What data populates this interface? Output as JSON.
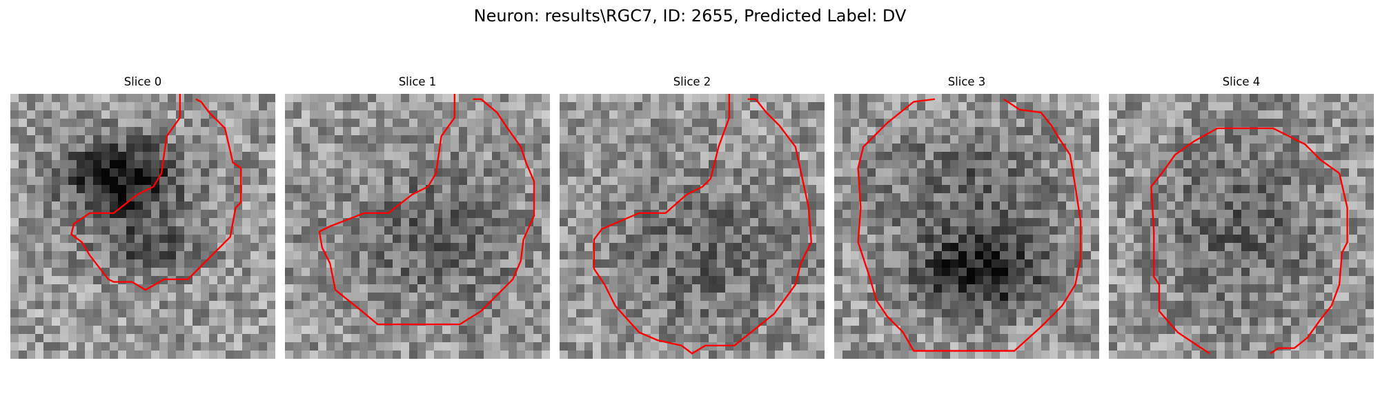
{
  "figure": {
    "title": "Neuron: results\\RGC7, ID: 2655, Predicted Label: DV",
    "panels": [
      {
        "title": "Slice 0",
        "seed": 11,
        "dark": [
          [
            0.42,
            0.32,
            0.24,
            0.16,
            0.55
          ],
          [
            0.52,
            0.58,
            0.22,
            0.12,
            0.28
          ]
        ],
        "contour": [
          [
            0.64,
            0.0
          ],
          [
            0.64,
            0.09
          ],
          [
            0.59,
            0.16
          ],
          [
            0.57,
            0.3
          ],
          [
            0.54,
            0.35
          ],
          [
            0.48,
            0.38
          ],
          [
            0.39,
            0.45
          ],
          [
            0.3,
            0.45
          ],
          [
            0.24,
            0.49
          ],
          [
            0.23,
            0.53
          ],
          [
            0.27,
            0.56
          ],
          [
            0.3,
            0.61
          ],
          [
            0.37,
            0.7
          ],
          [
            0.39,
            0.71
          ],
          [
            0.46,
            0.71
          ],
          [
            0.51,
            0.74
          ],
          [
            0.58,
            0.7
          ],
          [
            0.67,
            0.7
          ],
          [
            0.72,
            0.65
          ],
          [
            0.83,
            0.54
          ],
          [
            0.85,
            0.43
          ],
          [
            0.87,
            0.41
          ],
          [
            0.87,
            0.28
          ],
          [
            0.84,
            0.26
          ],
          [
            0.81,
            0.13
          ],
          [
            0.77,
            0.09
          ],
          [
            0.75,
            0.07
          ],
          [
            0.72,
            0.03
          ],
          [
            0.7,
            0.02
          ]
        ]
      },
      {
        "title": "Slice 1",
        "seed": 23,
        "dark": [
          [
            0.55,
            0.55,
            0.38,
            0.3,
            0.2
          ]
        ],
        "contour": [
          [
            0.64,
            0.0
          ],
          [
            0.64,
            0.09
          ],
          [
            0.59,
            0.16
          ],
          [
            0.57,
            0.3
          ],
          [
            0.54,
            0.35
          ],
          [
            0.48,
            0.38
          ],
          [
            0.39,
            0.45
          ],
          [
            0.3,
            0.45
          ],
          [
            0.17,
            0.5
          ],
          [
            0.13,
            0.52
          ],
          [
            0.14,
            0.58
          ],
          [
            0.17,
            0.64
          ],
          [
            0.19,
            0.74
          ],
          [
            0.29,
            0.82
          ],
          [
            0.35,
            0.87
          ],
          [
            0.66,
            0.87
          ],
          [
            0.74,
            0.82
          ],
          [
            0.86,
            0.7
          ],
          [
            0.89,
            0.63
          ],
          [
            0.9,
            0.55
          ],
          [
            0.94,
            0.46
          ],
          [
            0.94,
            0.33
          ],
          [
            0.91,
            0.26
          ],
          [
            0.89,
            0.2
          ],
          [
            0.84,
            0.13
          ],
          [
            0.8,
            0.07
          ],
          [
            0.74,
            0.02
          ],
          [
            0.71,
            0.02
          ]
        ]
      },
      {
        "title": "Slice 2",
        "seed": 37,
        "dark": [
          [
            0.55,
            0.6,
            0.38,
            0.32,
            0.2
          ]
        ],
        "contour": [
          [
            0.64,
            0.0
          ],
          [
            0.64,
            0.09
          ],
          [
            0.6,
            0.2
          ],
          [
            0.57,
            0.32
          ],
          [
            0.54,
            0.35
          ],
          [
            0.48,
            0.38
          ],
          [
            0.4,
            0.45
          ],
          [
            0.3,
            0.45
          ],
          [
            0.16,
            0.51
          ],
          [
            0.13,
            0.55
          ],
          [
            0.13,
            0.66
          ],
          [
            0.17,
            0.72
          ],
          [
            0.21,
            0.8
          ],
          [
            0.3,
            0.9
          ],
          [
            0.37,
            0.93
          ],
          [
            0.46,
            0.95
          ],
          [
            0.5,
            0.98
          ],
          [
            0.55,
            0.95
          ],
          [
            0.66,
            0.95
          ],
          [
            0.71,
            0.91
          ],
          [
            0.81,
            0.83
          ],
          [
            0.89,
            0.72
          ],
          [
            0.91,
            0.64
          ],
          [
            0.95,
            0.56
          ],
          [
            0.94,
            0.43
          ],
          [
            0.91,
            0.29
          ],
          [
            0.89,
            0.2
          ],
          [
            0.83,
            0.12
          ],
          [
            0.78,
            0.07
          ],
          [
            0.74,
            0.02
          ],
          [
            0.71,
            0.02
          ]
        ]
      },
      {
        "title": "Slice 3",
        "seed": 51,
        "dark": [
          [
            0.55,
            0.68,
            0.28,
            0.16,
            0.5
          ],
          [
            0.5,
            0.35,
            0.38,
            0.25,
            0.2
          ]
        ],
        "contour": [
          [
            0.38,
            0.02
          ],
          [
            0.3,
            0.03
          ],
          [
            0.2,
            0.11
          ],
          [
            0.11,
            0.2
          ],
          [
            0.09,
            0.28
          ],
          [
            0.1,
            0.43
          ],
          [
            0.09,
            0.56
          ],
          [
            0.13,
            0.68
          ],
          [
            0.16,
            0.78
          ],
          [
            0.2,
            0.84
          ],
          [
            0.26,
            0.9
          ],
          [
            0.3,
            0.97
          ],
          [
            0.68,
            0.97
          ],
          [
            0.78,
            0.88
          ],
          [
            0.86,
            0.8
          ],
          [
            0.91,
            0.72
          ],
          [
            0.93,
            0.62
          ],
          [
            0.93,
            0.48
          ],
          [
            0.91,
            0.35
          ],
          [
            0.89,
            0.23
          ],
          [
            0.85,
            0.17
          ],
          [
            0.82,
            0.12
          ],
          [
            0.78,
            0.07
          ],
          [
            0.7,
            0.06
          ],
          [
            0.64,
            0.02
          ]
        ]
      },
      {
        "title": "Slice 4",
        "seed": 67,
        "dark": [
          [
            0.5,
            0.5,
            0.34,
            0.38,
            0.2
          ]
        ],
        "contour": [
          [
            0.38,
            0.98
          ],
          [
            0.32,
            0.94
          ],
          [
            0.26,
            0.9
          ],
          [
            0.19,
            0.82
          ],
          [
            0.19,
            0.72
          ],
          [
            0.17,
            0.69
          ],
          [
            0.17,
            0.52
          ],
          [
            0.16,
            0.35
          ],
          [
            0.2,
            0.3
          ],
          [
            0.25,
            0.23
          ],
          [
            0.32,
            0.18
          ],
          [
            0.41,
            0.13
          ],
          [
            0.62,
            0.13
          ],
          [
            0.68,
            0.16
          ],
          [
            0.74,
            0.19
          ],
          [
            0.8,
            0.25
          ],
          [
            0.87,
            0.3
          ],
          [
            0.9,
            0.43
          ],
          [
            0.9,
            0.56
          ],
          [
            0.88,
            0.6
          ],
          [
            0.87,
            0.72
          ],
          [
            0.84,
            0.8
          ],
          [
            0.8,
            0.85
          ],
          [
            0.75,
            0.92
          ],
          [
            0.7,
            0.96
          ],
          [
            0.64,
            0.96
          ],
          [
            0.61,
            0.98
          ]
        ]
      }
    ]
  }
}
